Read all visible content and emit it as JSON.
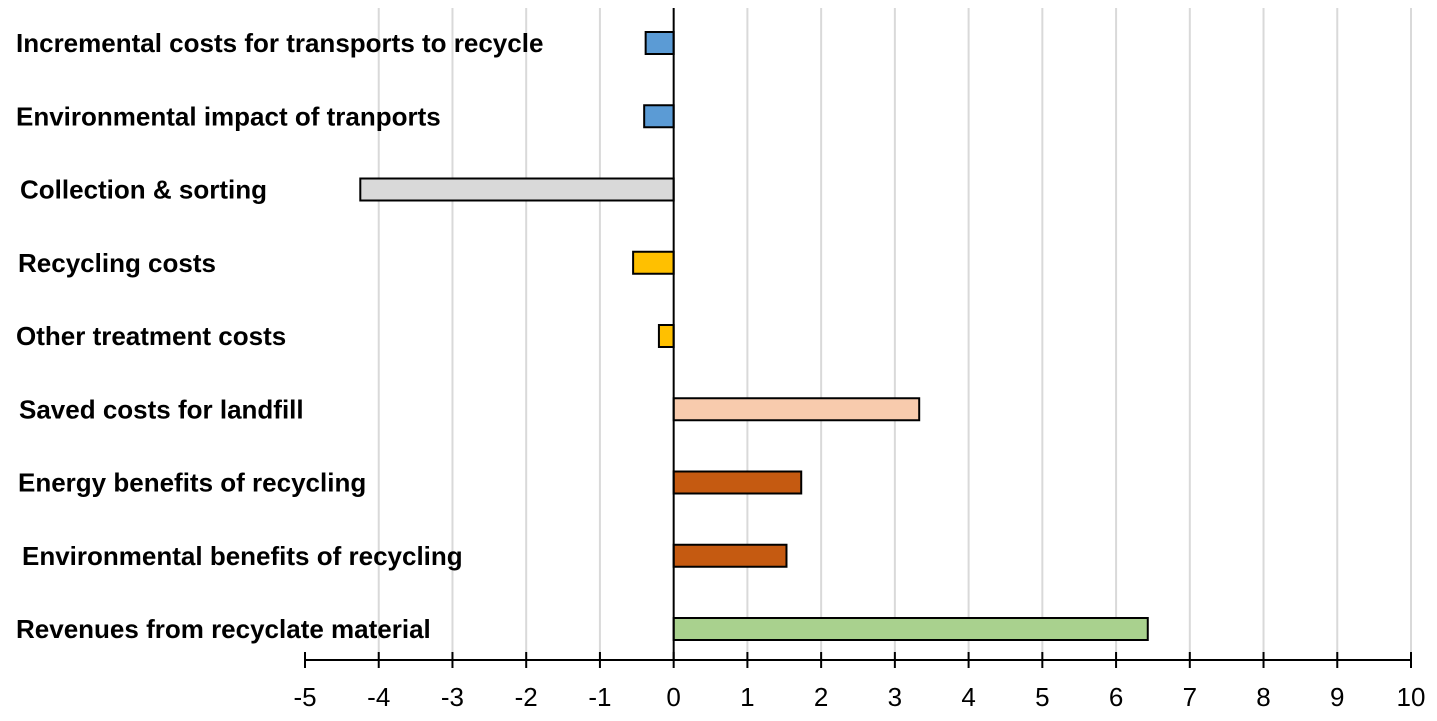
{
  "chart_data": {
    "type": "bar",
    "orientation": "horizontal",
    "title": "",
    "xlabel": "",
    "ylabel": "",
    "xlim": [
      -5,
      10
    ],
    "x_ticks": [
      -5,
      -4,
      -3,
      -2,
      -1,
      0,
      1,
      2,
      3,
      4,
      5,
      6,
      7,
      8,
      9,
      10
    ],
    "grid": "vertical",
    "legend": "none",
    "categories": [
      "Incremental costs for transports to recycle",
      "Environmental impact of tranports",
      "Collection & sorting",
      "Recycling costs",
      "Other treatment costs",
      "Saved costs for landfill",
      "Energy benefits of recycling",
      "Environmental benefits of recycling",
      "Revenues from recyclate material"
    ],
    "values": [
      -0.38,
      -0.4,
      -4.25,
      -0.55,
      -0.2,
      3.33,
      1.73,
      1.53,
      6.43
    ],
    "colors": [
      "#5b9bd5",
      "#5b9bd5",
      "#d9d9d9",
      "#ffc000",
      "#ffc000",
      "#f8cbad",
      "#c55a11",
      "#c55a11",
      "#a9d18e"
    ]
  }
}
